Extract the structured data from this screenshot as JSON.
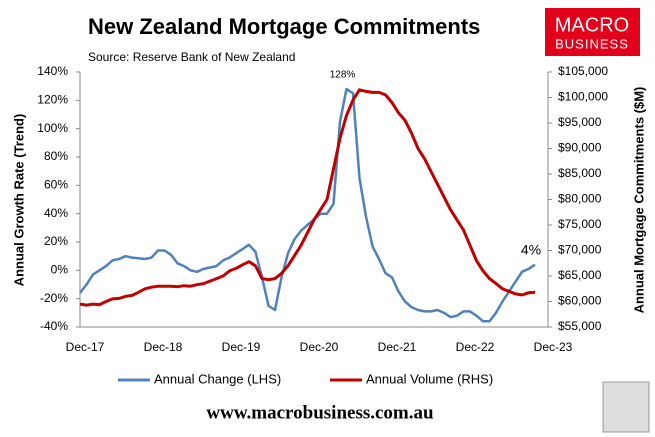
{
  "chart_data": {
    "type": "line",
    "title": "New Zealand Mortgage Commitments",
    "subtitle": "Source: Reserve Bank of New Zealand",
    "y_label": "Annual Growth Rate (Trend)",
    "y2_label": "Annual Mortgage Commitments ($M)",
    "categories": [
      "Dec-17",
      null,
      null,
      null,
      null,
      null,
      null,
      null,
      null,
      null,
      null,
      null,
      "Dec-18",
      null,
      null,
      null,
      null,
      null,
      null,
      null,
      null,
      null,
      null,
      null,
      "Dec-19",
      null,
      null,
      null,
      null,
      null,
      null,
      null,
      null,
      null,
      null,
      null,
      "Dec-20",
      null,
      null,
      null,
      null,
      null,
      null,
      null,
      null,
      null,
      null,
      null,
      "Dec-21",
      null,
      null,
      null,
      null,
      null,
      null,
      null,
      null,
      null,
      null,
      null,
      "Dec-22",
      null,
      null,
      null,
      null,
      null,
      null,
      null,
      null,
      null,
      null,
      null,
      "Dec-23"
    ],
    "series": [
      {
        "name": "Annual Change (LHS)",
        "color": "#4f81bd",
        "axis": "y",
        "values": [
          -16,
          -10,
          -3,
          0,
          3,
          7,
          8,
          10,
          9,
          8.5,
          8,
          9,
          14,
          14,
          11,
          5,
          3,
          0,
          -1,
          1,
          2,
          3,
          7,
          9,
          12,
          15,
          18,
          13,
          -5,
          -25,
          -28,
          -5,
          12,
          22,
          28,
          32,
          36,
          40,
          40,
          47,
          105,
          128,
          125,
          65,
          38,
          17,
          8,
          -2,
          -5,
          -15,
          -22,
          -26,
          -28,
          -29,
          -29,
          -28,
          -30,
          -33,
          -32,
          -29,
          -29,
          -32,
          -36,
          -36,
          -30,
          -22,
          -15,
          -8,
          -1,
          1,
          4,
          null,
          null
        ],
        "value_labels": [
          null,
          null,
          null,
          null,
          null,
          null,
          null,
          null,
          null,
          null,
          null,
          null,
          null,
          null,
          null,
          null,
          null,
          null,
          null,
          null,
          null,
          null,
          null,
          null,
          null,
          null,
          null,
          null,
          null,
          null,
          null,
          null,
          null,
          null,
          null,
          null,
          null,
          null,
          null,
          null,
          null,
          "128%",
          null,
          null,
          null,
          null,
          null,
          null,
          null,
          null,
          null,
          null,
          null,
          null,
          null,
          null,
          null,
          null,
          null,
          null,
          null,
          null,
          null,
          null,
          null,
          null,
          null,
          null,
          null,
          null,
          "4%",
          null,
          null
        ]
      },
      {
        "name": "Annual Volume (RHS)",
        "color": "#c00000",
        "axis": "y2",
        "values": [
          59500,
          59300,
          59500,
          59400,
          60000,
          60500,
          60600,
          61000,
          61200,
          61800,
          62500,
          62800,
          63000,
          63000,
          63000,
          62900,
          63100,
          63000,
          63300,
          63500,
          64000,
          64500,
          65000,
          66000,
          66500,
          67200,
          67800,
          67000,
          64500,
          64300,
          64500,
          65500,
          67000,
          69000,
          71000,
          73500,
          76000,
          78000,
          80000,
          86000,
          92000,
          96500,
          99500,
          101500,
          101200,
          101000,
          101000,
          100500,
          99000,
          97000,
          95500,
          93000,
          90000,
          88000,
          85500,
          83000,
          80500,
          78000,
          76000,
          74000,
          71000,
          68000,
          66000,
          64500,
          63500,
          62500,
          62000,
          61500,
          61300,
          61700,
          61800,
          null,
          null
        ]
      }
    ],
    "ylim": [
      -40,
      140
    ],
    "yticks": [
      {
        "value": -40,
        "label": "-40%"
      },
      {
        "value": -20,
        "label": "-20%"
      },
      {
        "value": 0,
        "label": "0%"
      },
      {
        "value": 20,
        "label": "20%"
      },
      {
        "value": 40,
        "label": "40%"
      },
      {
        "value": 60,
        "label": "60%"
      },
      {
        "value": 80,
        "label": "80%"
      },
      {
        "value": 100,
        "label": "100%"
      },
      {
        "value": 120,
        "label": "120%"
      },
      {
        "value": 140,
        "label": "140%"
      }
    ],
    "y2lim": [
      55000,
      105000
    ],
    "y2ticks": [
      {
        "value": 55000,
        "label": "$55,000"
      },
      {
        "value": 60000,
        "label": "$60,000"
      },
      {
        "value": 65000,
        "label": "$65,000"
      },
      {
        "value": 70000,
        "label": "$70,000"
      },
      {
        "value": 75000,
        "label": "$75,000"
      },
      {
        "value": 80000,
        "label": "$80,000"
      },
      {
        "value": 85000,
        "label": "$85,000"
      },
      {
        "value": 90000,
        "label": "$90,000"
      },
      {
        "value": 95000,
        "label": "$95,000"
      },
      {
        "value": 100000,
        "label": "$100,000"
      },
      {
        "value": 105000,
        "label": "$105,000"
      }
    ],
    "grid": false,
    "legend": "bottom"
  },
  "branding": {
    "logo_top": "MACRO",
    "logo_bottom": "BUSINESS",
    "url": "www.macrobusiness.com.au"
  }
}
